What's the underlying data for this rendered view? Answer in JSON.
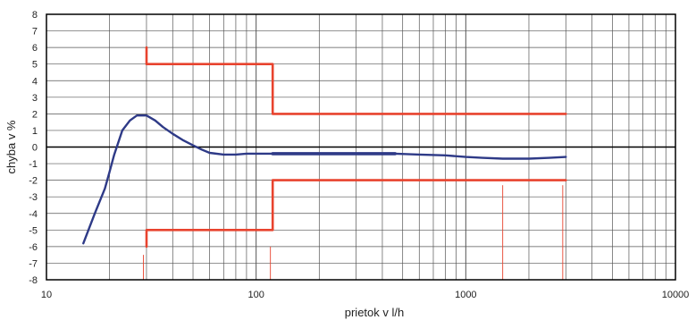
{
  "chart_data": {
    "type": "line",
    "title": "",
    "xlabel": "prietok v l/h",
    "ylabel": "chyba v %",
    "x_scale": "log",
    "xlim": [
      10,
      10000
    ],
    "ylim": [
      -8,
      8
    ],
    "x_ticks": [
      10,
      100,
      1000,
      10000
    ],
    "x_tick_labels": [
      "10",
      "100",
      "1000",
      "10000"
    ],
    "y_ticks": [
      8,
      7,
      6,
      5,
      4,
      3,
      2,
      1,
      0,
      -1,
      -2,
      -3,
      -4,
      -5,
      -6,
      -7,
      -8
    ],
    "y_tick_labels": [
      "8",
      "7",
      "6",
      "5",
      "4",
      "3",
      "2",
      "1",
      "0",
      "-1",
      "-2",
      "-3",
      "-4",
      "-5",
      "-6",
      "-7",
      "-8"
    ],
    "grid": true,
    "legend": "none",
    "colors": {
      "measured": "#2e3a87",
      "limits": "#e8432e",
      "axis": "#000000",
      "grid": "#555555"
    },
    "series": [
      {
        "role": "measured",
        "x": [
          15,
          17,
          19,
          20,
          21,
          23,
          25,
          27,
          30,
          33,
          36,
          40,
          45,
          50,
          55,
          60,
          70,
          80,
          90,
          100,
          120,
          150,
          200,
          300,
          460,
          600,
          800,
          1000,
          1200,
          1500,
          2000,
          2500,
          3000
        ],
        "y": [
          -5.8,
          -4.0,
          -2.5,
          -1.5,
          -0.5,
          1.0,
          1.6,
          1.9,
          1.9,
          1.6,
          1.2,
          0.8,
          0.4,
          0.1,
          -0.15,
          -0.35,
          -0.45,
          -0.45,
          -0.4,
          -0.4,
          -0.4,
          -0.4,
          -0.4,
          -0.4,
          -0.4,
          -0.45,
          -0.5,
          -0.6,
          -0.65,
          -0.7,
          -0.7,
          -0.65,
          -0.6
        ]
      },
      {
        "role": "upper-limit",
        "x": [
          30,
          30,
          120,
          120,
          3000
        ],
        "y": [
          6,
          5,
          5,
          2,
          2
        ]
      },
      {
        "role": "lower-limit",
        "x": [
          30,
          30,
          120,
          120,
          3000
        ],
        "y": [
          -6,
          -5,
          -5,
          -2,
          -2
        ]
      },
      {
        "role": "measured-band",
        "x": [
          120,
          460
        ],
        "y": [
          -0.4,
          -0.4
        ]
      }
    ],
    "markers": [
      {
        "x": 29,
        "y_from": -8,
        "y_to": -6.5
      },
      {
        "x": 117,
        "y_from": -8,
        "y_to": -6.0
      },
      {
        "x": 1500,
        "y_from": -8,
        "y_to": -2.3
      },
      {
        "x": 2900,
        "y_from": -8,
        "y_to": -2.3
      }
    ]
  }
}
